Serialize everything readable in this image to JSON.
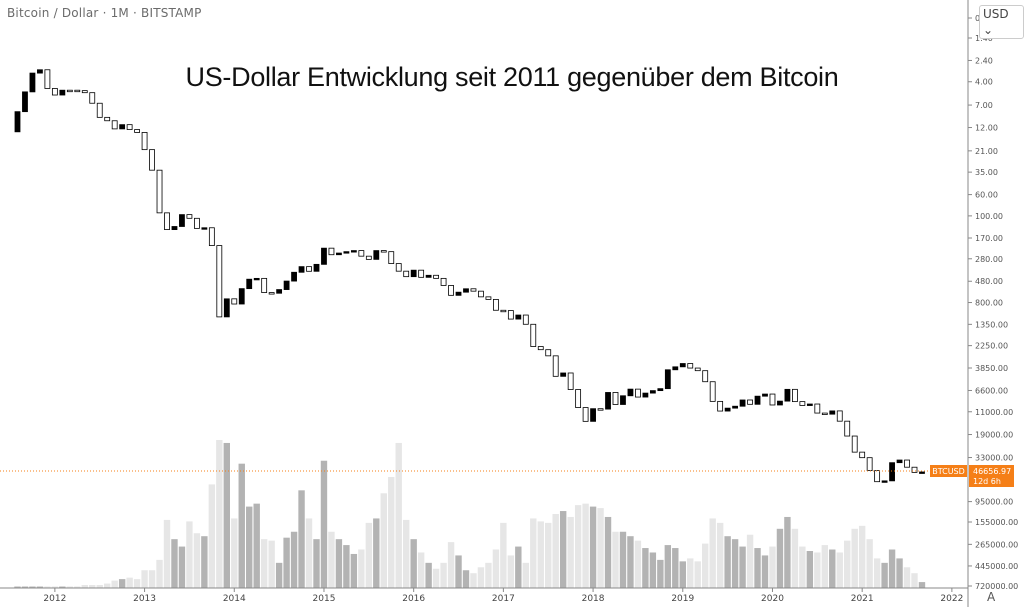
{
  "header": {
    "symbol_text": "Bitcoin / Dollar · 1M · BITSTAMP",
    "currency_button": "USD ⌄",
    "auto_scale_button": "A"
  },
  "title": "US-Dollar Entwicklung seit 2011 gegenüber dem Bitcoin",
  "price_tag": {
    "symbol": "BTCUSD",
    "price": "46656.97",
    "countdown": "12d 6h",
    "color": "#f57f17"
  },
  "colors": {
    "up_body": "#ffffff",
    "down_body": "#000000",
    "volume_up": "#e6e6e6",
    "volume_down": "#b3b3b3"
  },
  "chart_data": {
    "type": "candlestick",
    "interval": "1M",
    "y_scale": "log, inverted",
    "yticks": [
      "0",
      "1.40",
      "2.40",
      "4.00",
      "7.00",
      "12.00",
      "21.00",
      "35.00",
      "60.00",
      "100.00",
      "170.00",
      "280.00",
      "480.00",
      "800.00",
      "1350.00",
      "2250.00",
      "3850.00",
      "6600.00",
      "11000.00",
      "19000.00",
      "33000.00",
      "95000.00",
      "155000.00",
      "265000.00",
      "445000.00",
      "720000.00"
    ],
    "xticks": [
      "2012",
      "2013",
      "2014",
      "2015",
      "2016",
      "2017",
      "2018",
      "2019",
      "2020",
      "2021",
      "2022"
    ],
    "start_month": "2011-08",
    "first_open": 13.3,
    "close": [
      8.2,
      5.1,
      3.25,
      3.0,
      4.7,
      5.5,
      4.9,
      4.9,
      4.95,
      5.2,
      6.7,
      9.4,
      10.2,
      12.4,
      11.2,
      12.6,
      13.5,
      20.4,
      33.4,
      93,
      139,
      129,
      97,
      106,
      135,
      133,
      204,
      1129,
      732,
      829,
      573,
      457,
      448,
      630,
      640,
      586,
      478,
      387,
      338,
      378,
      320,
      217,
      254,
      244,
      236,
      230,
      263,
      284,
      230,
      236,
      314,
      377,
      430,
      368,
      437,
      416,
      448,
      531,
      673,
      624,
      575,
      609,
      698,
      742,
      963,
      970,
      1190,
      1080,
      1348,
      2300,
      2480,
      2875,
      4700,
      4338,
      6450,
      9946,
      13850,
      10220,
      10320,
      6925,
      9240,
      7495,
      6390,
      7730,
      7030,
      6625,
      6317,
      4017,
      3742,
      3457,
      3854,
      4105,
      5350,
      8574,
      10817,
      10085,
      9630,
      8293,
      9199,
      7569,
      7193,
      9350,
      8523,
      6424,
      8624,
      9454,
      9137,
      11351,
      11655,
      10779,
      13791,
      19700,
      28990,
      33114,
      45137,
      58918,
      57750,
      37332,
      35040,
      41626,
      47130,
      46656.97
    ],
    "volume_relative": [
      1,
      1,
      1,
      1,
      1,
      1,
      1,
      1,
      1,
      2,
      2,
      2,
      3,
      5,
      6,
      7,
      6,
      12,
      12,
      19,
      46,
      33,
      28,
      45,
      37,
      35,
      70,
      100,
      98,
      47,
      84,
      55,
      57,
      33,
      32,
      17,
      34,
      38,
      66,
      47,
      33,
      86,
      38,
      33,
      29,
      23,
      26,
      44,
      47,
      64,
      75,
      98,
      46,
      33,
      24,
      17,
      13,
      17,
      31,
      22,
      12,
      10,
      14,
      17,
      26,
      44,
      22,
      28,
      17,
      47,
      45,
      44,
      50,
      52,
      48,
      56,
      57,
      55,
      54,
      48,
      38,
      38,
      35,
      32,
      27,
      24,
      19,
      29,
      27,
      18,
      20,
      18,
      30,
      47,
      44,
      35,
      33,
      28,
      36,
      27,
      22,
      28,
      40,
      48,
      40,
      28,
      25,
      24,
      29,
      26,
      24,
      32,
      40,
      42,
      33,
      20,
      17,
      26,
      20,
      14,
      10,
      4
    ],
    "last_price": 46656.97
  }
}
